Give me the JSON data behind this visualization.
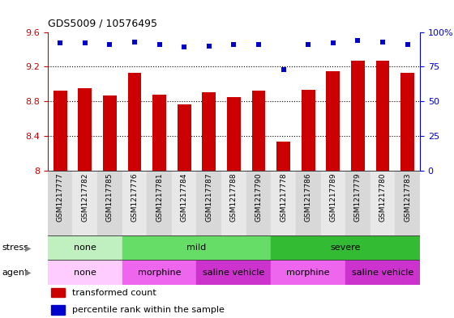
{
  "title": "GDS5009 / 10576495",
  "samples": [
    "GSM1217777",
    "GSM1217782",
    "GSM1217785",
    "GSM1217776",
    "GSM1217781",
    "GSM1217784",
    "GSM1217787",
    "GSM1217788",
    "GSM1217790",
    "GSM1217778",
    "GSM1217786",
    "GSM1217789",
    "GSM1217779",
    "GSM1217780",
    "GSM1217783"
  ],
  "bar_values": [
    8.92,
    8.95,
    8.87,
    9.13,
    8.88,
    8.76,
    8.9,
    8.85,
    8.92,
    8.33,
    8.93,
    9.15,
    9.27,
    9.27,
    9.13
  ],
  "percentile_values": [
    92,
    92,
    91,
    93,
    91,
    89,
    90,
    91,
    91,
    73,
    91,
    92,
    94,
    93,
    91
  ],
  "bar_color": "#cc0000",
  "dot_color": "#0000cc",
  "ylim_left": [
    8.0,
    9.6
  ],
  "ylim_right": [
    0,
    100
  ],
  "yticks_left": [
    8.0,
    8.4,
    8.8,
    9.2,
    9.6
  ],
  "ytick_labels_left": [
    "8",
    "8.4",
    "8.8",
    "9.2",
    "9.6"
  ],
  "yticks_right": [
    0,
    25,
    50,
    75,
    100
  ],
  "ytick_labels_right": [
    "0",
    "25",
    "50",
    "75",
    "100%"
  ],
  "stress_groups": [
    {
      "label": "none",
      "start": 0,
      "end": 3,
      "color": "#b3f0b3"
    },
    {
      "label": "mild",
      "start": 3,
      "end": 9,
      "color": "#66dd66"
    },
    {
      "label": "severe",
      "start": 9,
      "end": 15,
      "color": "#33cc33"
    }
  ],
  "agent_groups": [
    {
      "label": "none",
      "start": 0,
      "end": 3,
      "color": "#ffccff"
    },
    {
      "label": "morphine",
      "start": 3,
      "end": 6,
      "color": "#ee77ee"
    },
    {
      "label": "saline vehicle",
      "start": 6,
      "end": 9,
      "color": "#cc44cc"
    },
    {
      "label": "morphine",
      "start": 9,
      "end": 12,
      "color": "#ee77ee"
    },
    {
      "label": "saline vehicle",
      "start": 12,
      "end": 15,
      "color": "#cc44cc"
    }
  ],
  "bar_width": 0.55,
  "xtick_bg_even": "#d8d8d8",
  "xtick_bg_odd": "#e8e8e8"
}
